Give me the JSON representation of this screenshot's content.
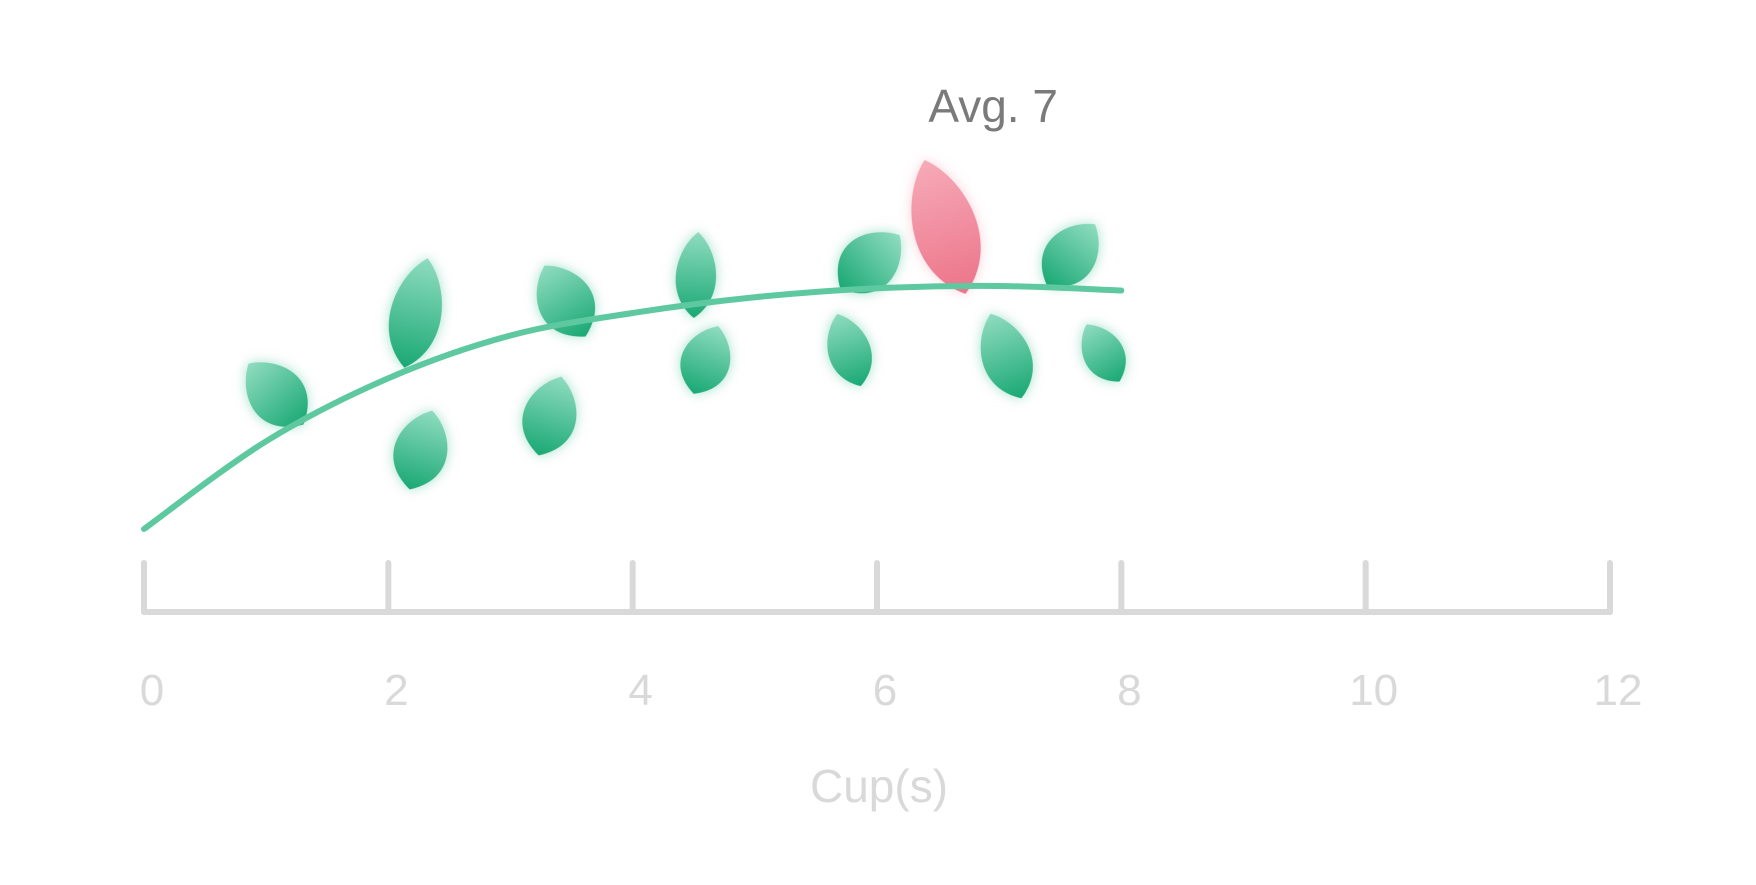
{
  "chart_data": {
    "type": "line",
    "title": "",
    "xlabel": "Cup(s)",
    "ylabel": "",
    "xlim": [
      0,
      12
    ],
    "x_ticks": [
      "0",
      "2",
      "4",
      "6",
      "8",
      "10",
      "12"
    ],
    "grid": false,
    "series": [
      {
        "values": [
          {
            "x": 0,
            "y": 0.0
          },
          {
            "x": 1,
            "y": 0.39
          },
          {
            "x": 2,
            "y": 0.67
          },
          {
            "x": 3,
            "y": 0.86
          },
          {
            "x": 4,
            "y": 0.96
          },
          {
            "x": 5,
            "y": 1.03
          },
          {
            "x": 6,
            "y": 1.07
          },
          {
            "x": 7,
            "y": 1.08
          },
          {
            "x": 8,
            "y": 1.06
          }
        ]
      }
    ],
    "average": {
      "label": "Avg. 7",
      "x": 7
    },
    "colors": {
      "line": "#5ec9a0",
      "leaf_dark": "#1aa874",
      "leaf_light": "#8fdcc0",
      "highlight_leaf": "#ef7d92",
      "axis": "#d9d9d9",
      "tick_text": "#d9d9d9",
      "avg_text": "#7a7a7a"
    }
  }
}
